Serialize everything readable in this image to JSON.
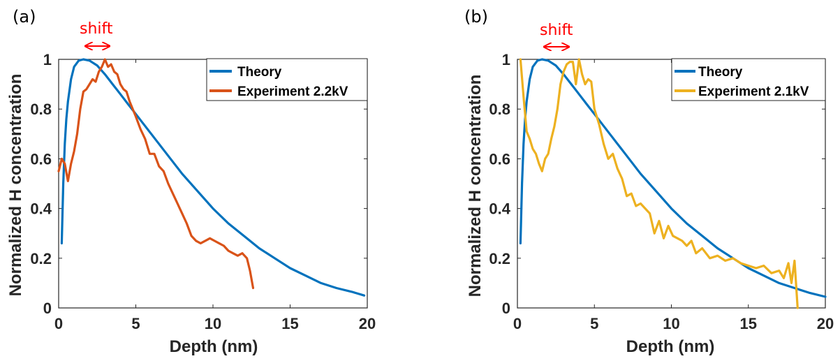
{
  "chart_data": [
    {
      "panel_label": "(a)",
      "type": "line",
      "xlabel": "Depth (nm)",
      "ylabel": "Normalized H concentration",
      "xlim": [
        0,
        20
      ],
      "ylim": [
        0,
        1
      ],
      "xticks": [
        "0",
        "5",
        "10",
        "15",
        "20"
      ],
      "yticks": [
        "0",
        "0.2",
        "0.4",
        "0.6",
        "0.8",
        "1"
      ],
      "annotation": "shift",
      "legend_position": "top-right",
      "grid": false,
      "series": [
        {
          "name": "Theory",
          "color": "#0072BD",
          "x": [
            0.2,
            0.3,
            0.4,
            0.5,
            0.6,
            0.8,
            1.0,
            1.3,
            1.6,
            2.0,
            2.5,
            3.0,
            3.5,
            4.0,
            4.5,
            5.0,
            6.0,
            7.0,
            8.0,
            9.0,
            10.0,
            11.0,
            12.0,
            13.0,
            14.0,
            15.0,
            16.0,
            17.0,
            18.0,
            19.0,
            19.8
          ],
          "y": [
            0.26,
            0.5,
            0.66,
            0.76,
            0.83,
            0.92,
            0.97,
            0.995,
            1.0,
            0.995,
            0.975,
            0.94,
            0.9,
            0.86,
            0.82,
            0.78,
            0.7,
            0.62,
            0.54,
            0.47,
            0.4,
            0.34,
            0.29,
            0.24,
            0.2,
            0.16,
            0.13,
            0.1,
            0.08,
            0.065,
            0.05
          ]
        },
        {
          "name": "Experiment 2.2kV",
          "color": "#D95319",
          "x": [
            0.0,
            0.2,
            0.4,
            0.6,
            0.8,
            1.0,
            1.2,
            1.4,
            1.6,
            1.8,
            2.0,
            2.2,
            2.4,
            2.6,
            2.8,
            3.0,
            3.2,
            3.4,
            3.6,
            3.8,
            4.0,
            4.2,
            4.4,
            4.6,
            4.8,
            5.0,
            5.3,
            5.6,
            5.9,
            6.2,
            6.5,
            6.8,
            7.1,
            7.4,
            7.7,
            8.0,
            8.3,
            8.6,
            8.9,
            9.2,
            9.5,
            9.8,
            10.1,
            10.4,
            10.7,
            11.0,
            11.3,
            11.6,
            11.9,
            12.2,
            12.4,
            12.6
          ],
          "y": [
            0.55,
            0.6,
            0.58,
            0.51,
            0.58,
            0.63,
            0.7,
            0.8,
            0.87,
            0.88,
            0.9,
            0.92,
            0.91,
            0.95,
            0.97,
            1.0,
            0.97,
            0.98,
            0.95,
            0.94,
            0.9,
            0.88,
            0.87,
            0.83,
            0.8,
            0.77,
            0.72,
            0.68,
            0.62,
            0.62,
            0.57,
            0.55,
            0.5,
            0.46,
            0.42,
            0.38,
            0.34,
            0.29,
            0.27,
            0.26,
            0.27,
            0.28,
            0.27,
            0.26,
            0.25,
            0.23,
            0.22,
            0.21,
            0.22,
            0.2,
            0.15,
            0.08
          ]
        }
      ]
    },
    {
      "panel_label": "(b)",
      "type": "line",
      "xlabel": "Depth (nm)",
      "ylabel": "Normalized H concentration",
      "xlim": [
        0,
        20
      ],
      "ylim": [
        0,
        1
      ],
      "xticks": [
        "0",
        "5",
        "10",
        "15",
        "20"
      ],
      "yticks": [
        "0",
        "0.2",
        "0.4",
        "0.6",
        "0.8",
        "1"
      ],
      "annotation": "shift",
      "legend_position": "top-right",
      "grid": false,
      "series": [
        {
          "name": "Theory",
          "color": "#0072BD",
          "x": [
            0.2,
            0.3,
            0.4,
            0.5,
            0.6,
            0.8,
            1.0,
            1.3,
            1.6,
            2.0,
            2.5,
            3.0,
            3.5,
            4.0,
            4.5,
            5.0,
            6.0,
            7.0,
            8.0,
            9.0,
            10.0,
            11.0,
            12.0,
            13.0,
            14.0,
            15.0,
            16.0,
            17.0,
            18.0,
            19.0,
            20.0
          ],
          "y": [
            0.26,
            0.5,
            0.66,
            0.76,
            0.83,
            0.92,
            0.97,
            0.995,
            1.0,
            0.995,
            0.975,
            0.94,
            0.9,
            0.86,
            0.82,
            0.78,
            0.7,
            0.62,
            0.54,
            0.47,
            0.4,
            0.34,
            0.29,
            0.24,
            0.2,
            0.16,
            0.13,
            0.1,
            0.08,
            0.06,
            0.045
          ]
        },
        {
          "name": "Experiment 2.1kV",
          "color": "#EDB120",
          "x": [
            0.2,
            0.4,
            0.6,
            0.8,
            1.0,
            1.2,
            1.4,
            1.6,
            1.8,
            2.0,
            2.2,
            2.4,
            2.6,
            2.8,
            3.0,
            3.2,
            3.4,
            3.6,
            3.8,
            4.0,
            4.2,
            4.4,
            4.6,
            4.8,
            5.0,
            5.3,
            5.6,
            5.9,
            6.2,
            6.5,
            6.8,
            7.1,
            7.4,
            7.7,
            8.0,
            8.3,
            8.6,
            8.9,
            9.2,
            9.5,
            9.8,
            10.1,
            10.4,
            10.7,
            11.0,
            11.3,
            11.6,
            12.0,
            12.5,
            13.0,
            13.5,
            14.0,
            14.5,
            15.0,
            15.5,
            16.0,
            16.5,
            17.0,
            17.3,
            17.6,
            17.8,
            18.0,
            18.2
          ],
          "y": [
            1.0,
            0.85,
            0.71,
            0.68,
            0.64,
            0.62,
            0.58,
            0.55,
            0.6,
            0.62,
            0.68,
            0.73,
            0.8,
            0.9,
            0.95,
            0.98,
            0.99,
            0.99,
            0.9,
            1.0,
            0.94,
            0.9,
            0.92,
            0.91,
            0.8,
            0.74,
            0.66,
            0.6,
            0.62,
            0.56,
            0.52,
            0.45,
            0.46,
            0.41,
            0.42,
            0.4,
            0.38,
            0.3,
            0.35,
            0.28,
            0.33,
            0.29,
            0.28,
            0.27,
            0.25,
            0.27,
            0.22,
            0.24,
            0.2,
            0.21,
            0.19,
            0.2,
            0.18,
            0.17,
            0.16,
            0.17,
            0.14,
            0.15,
            0.12,
            0.18,
            0.1,
            0.19,
            0.0
          ]
        }
      ]
    }
  ]
}
